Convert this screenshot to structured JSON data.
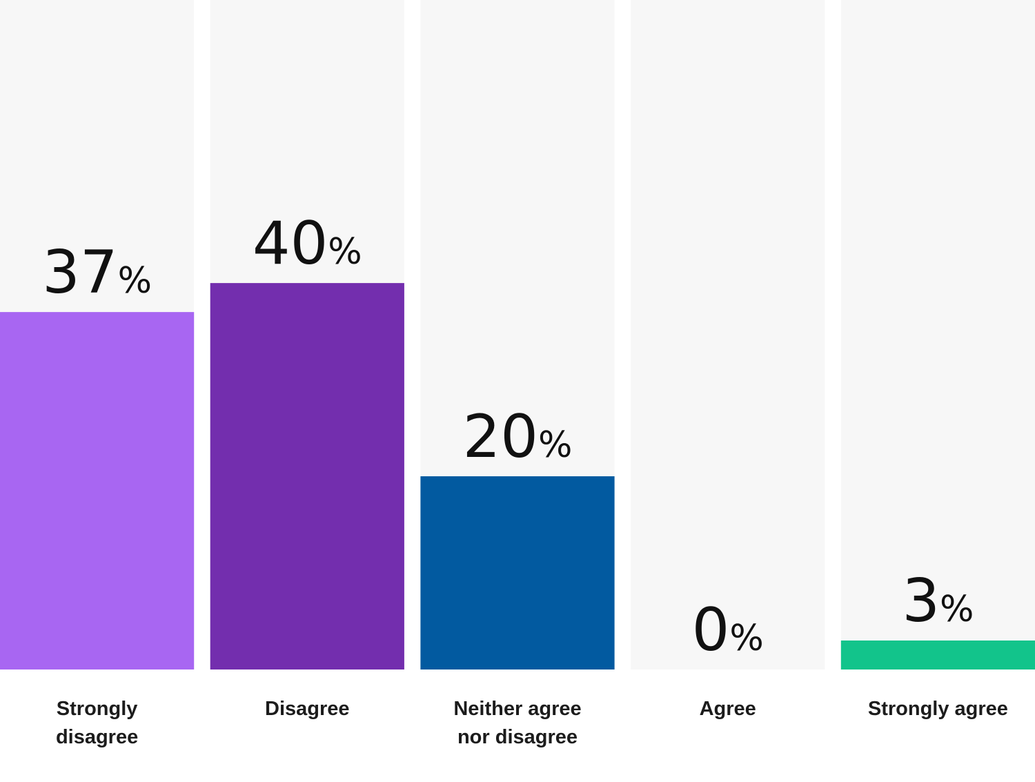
{
  "chart_data": {
    "type": "bar",
    "categories": [
      "Strongly disagree",
      "Disagree",
      "Neither agree nor disagree",
      "Agree",
      "Strongly agree"
    ],
    "values": [
      37,
      40,
      20,
      0,
      3
    ],
    "value_labels": [
      "37%",
      "40%",
      "20%",
      "0%",
      "3%"
    ],
    "colors": [
      "#a866f2",
      "#732eae",
      "#025aa0",
      null,
      "#12c48b"
    ],
    "ylim": [
      0,
      69.3
    ]
  }
}
